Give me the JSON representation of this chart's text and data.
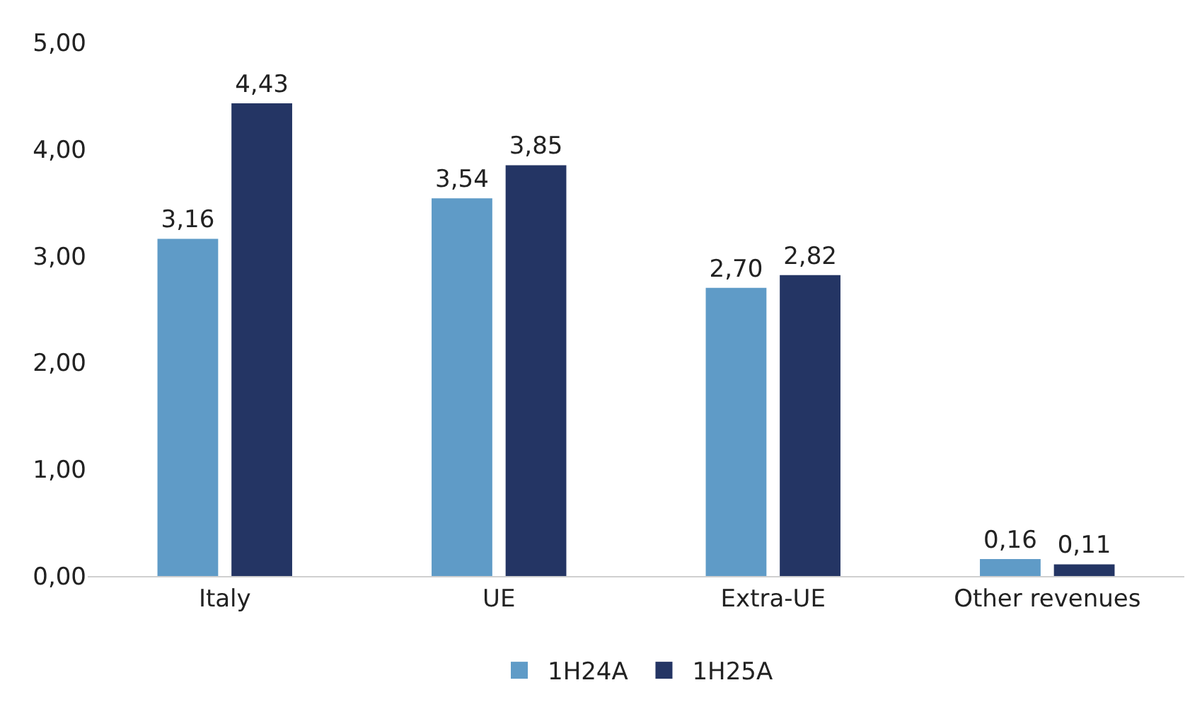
{
  "chart_data": {
    "type": "bar",
    "categories": [
      "Italy",
      "UE",
      "Extra-UE",
      "Other revenues"
    ],
    "series": [
      {
        "name": "1H24A",
        "color": "#5f9bc7",
        "values": [
          3.16,
          3.54,
          2.7,
          0.16
        ],
        "value_labels": [
          "3,16",
          "3,54",
          "2,70",
          "0,16"
        ]
      },
      {
        "name": "1H25A",
        "color": "#243564",
        "values": [
          4.43,
          3.85,
          2.82,
          0.11
        ],
        "value_labels": [
          "4,43",
          "3,85",
          "2,82",
          "0,11"
        ]
      }
    ],
    "ylim": [
      0,
      5
    ],
    "yticks": [
      {
        "value": 0,
        "label": "0,00"
      },
      {
        "value": 1,
        "label": "1,00"
      },
      {
        "value": 2,
        "label": "2,00"
      },
      {
        "value": 3,
        "label": "3,00"
      },
      {
        "value": 4,
        "label": "4,00"
      },
      {
        "value": 5,
        "label": "5,00"
      }
    ],
    "grid": false,
    "legend": "bottom"
  }
}
